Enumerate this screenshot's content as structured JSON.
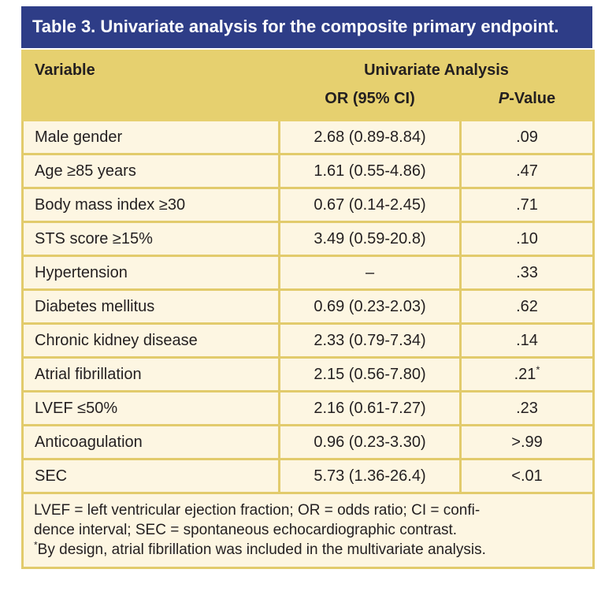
{
  "title": "Table 3. Univariate analysis for the composite primary endpoint.",
  "colors": {
    "title_bar_blue": "#2e3d87",
    "title_text": "#ffffff",
    "header_gold": "#e6d06f",
    "border_gold": "#e2cb6c",
    "row_cream": "#fdf6e2",
    "body_text": "#231f20"
  },
  "table": {
    "col_variable": "Variable",
    "group_header": "Univariate Analysis",
    "col_or": "OR (95% CI)",
    "col_p_italic": "P",
    "col_p_rest": "-Value",
    "rows": [
      {
        "variable": "Male gender",
        "or": "2.68 (0.89-8.84)",
        "p": ".09"
      },
      {
        "variable": "Age ≥85 years",
        "or": "1.61 (0.55-4.86)",
        "p": ".47"
      },
      {
        "variable": "Body mass index ≥30",
        "or": "0.67 (0.14-2.45)",
        "p": ".71"
      },
      {
        "variable": "STS score ≥15%",
        "or": "3.49 (0.59-20.8)",
        "p": ".10"
      },
      {
        "variable": "Hypertension",
        "or": "–",
        "p": ".33"
      },
      {
        "variable": "Diabetes mellitus",
        "or": "0.69 (0.23-2.03)",
        "p": ".62"
      },
      {
        "variable": "Chronic kidney disease",
        "or": "2.33 (0.79-7.34)",
        "p": ".14"
      },
      {
        "variable": "Atrial fibrillation",
        "or": "2.15 (0.56-7.80)",
        "p": ".21",
        "p_note": "*"
      },
      {
        "variable": "LVEF ≤50%",
        "or": "2.16 (0.61-7.27)",
        "p": ".23"
      },
      {
        "variable": "Anticoagulation",
        "or": "0.96 (0.23-3.30)",
        "p": ">.99"
      },
      {
        "variable": "SEC",
        "or": "5.73 (1.36-26.4)",
        "p": "<.01"
      }
    ]
  },
  "footnote": {
    "line1": "LVEF = left ventricular ejection fraction; OR = odds ratio; CI = confi-",
    "line2": "dence interval; SEC = spontaneous echocardiographic contrast.",
    "note_marker": "*",
    "note_text": "By design, atrial fibrillation was included in the multivariate analysis."
  }
}
